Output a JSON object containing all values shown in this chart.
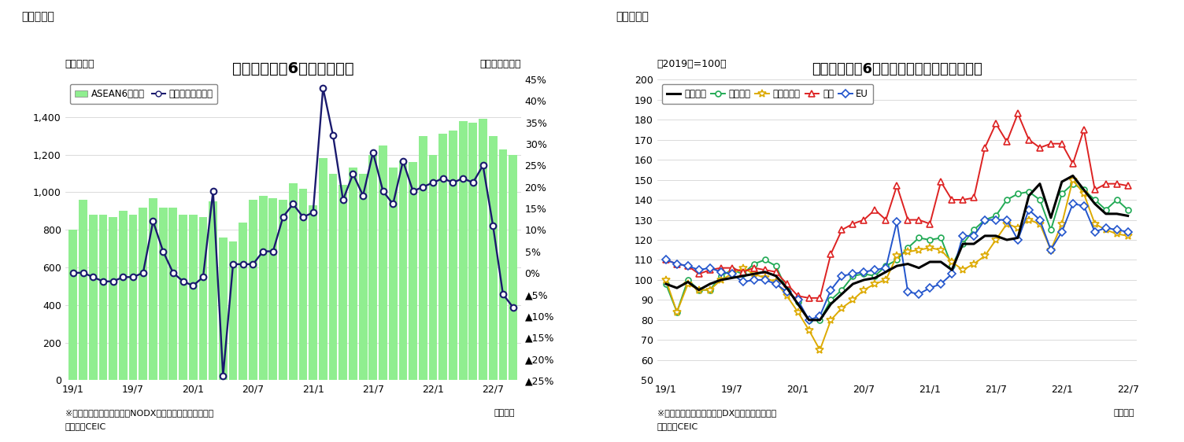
{
  "fig1": {
    "title": "アセアン主要6カ国の輸出額",
    "ylabel_left": "（億ドル）",
    "ylabel_right": "（前年同月比）",
    "xlabel": "（年月）",
    "footnote1": "※シンガポールの輸出額はNODX（石油と再輸出除く）。",
    "footnote2": "（資料）CEIC",
    "header": "（図表１）",
    "legend_bar": "ASEAN6カ国計",
    "legend_line": "増加率（右目盛）",
    "bar_color": "#90EE90",
    "line_color": "#1a1a6e",
    "xtick_labels": [
      "19/1",
      "19/7",
      "20/1",
      "20/7",
      "21/1",
      "21/7",
      "22/1",
      "22/7"
    ],
    "xtick_pos": [
      0,
      6,
      12,
      18,
      24,
      30,
      36,
      42
    ],
    "ylim_left": [
      0,
      1600
    ],
    "ylim_right": [
      -0.25,
      0.45
    ],
    "bar_values": [
      800,
      960,
      880,
      880,
      870,
      900,
      880,
      920,
      970,
      920,
      920,
      880,
      880,
      870,
      950,
      760,
      740,
      840,
      960,
      980,
      970,
      960,
      1050,
      1020,
      930,
      1180,
      1100,
      1040,
      1130,
      1100,
      1200,
      1250,
      1130,
      1170,
      1160,
      1300,
      1200,
      1310,
      1330,
      1380,
      1370,
      1390,
      1300,
      1230,
      1200
    ],
    "line_values": [
      0.0,
      0.0,
      -0.01,
      -0.02,
      -0.02,
      -0.01,
      -0.01,
      0.0,
      0.12,
      0.05,
      0.0,
      -0.02,
      -0.03,
      -0.01,
      0.19,
      -0.24,
      0.02,
      0.02,
      0.02,
      0.05,
      0.05,
      0.13,
      0.16,
      0.13,
      0.14,
      0.43,
      0.32,
      0.17,
      0.23,
      0.18,
      0.28,
      0.19,
      0.16,
      0.26,
      0.19,
      0.2,
      0.21,
      0.22,
      0.21,
      0.22,
      0.21,
      0.25,
      0.11,
      -0.05,
      -0.08
    ],
    "ytick_left_vals": [
      0,
      200,
      400,
      600,
      800,
      1000,
      1200,
      1400
    ],
    "ytick_left_labels": [
      "0",
      "200",
      "400",
      "600",
      "800",
      "1,000",
      "1,200",
      "1,400"
    ],
    "ytick_right_vals": [
      0.45,
      0.4,
      0.35,
      0.3,
      0.25,
      0.2,
      0.15,
      0.1,
      0.05,
      0.0,
      -0.05,
      -0.1,
      -0.15,
      -0.2,
      -0.25
    ],
    "ytick_right_labels": [
      "45%",
      "40%",
      "35%",
      "30%",
      "25%",
      "20%",
      "15%",
      "10%",
      "5%",
      "0%",
      "▲5%",
      "▲10%",
      "▲15%",
      "▲20%",
      "▲25%"
    ]
  },
  "fig2": {
    "title": "アセアン主要6カ国　仕向け地別の輸出動向",
    "ylabel_left": "（2019年=100）",
    "xlabel": "（年月）",
    "footnote1": "※シンガポールの輸出額はDX（再輸出除く）。",
    "footnote2": "（資料）CEIC",
    "header": "（図表２）",
    "legend": [
      "輸出全体",
      "東アジア",
      "東南アジア",
      "北米",
      "EU"
    ],
    "colors": [
      "#000000",
      "#22aa55",
      "#ddaa00",
      "#dd2222",
      "#2255cc"
    ],
    "line_widths": [
      2.2,
      1.4,
      1.4,
      1.4,
      1.4
    ],
    "markers": [
      "none",
      "o",
      "*",
      "^",
      "D"
    ],
    "marker_sizes": [
      0,
      5,
      7,
      6,
      5
    ],
    "xtick_labels": [
      "19/1",
      "19/7",
      "20/1",
      "20/7",
      "21/1",
      "21/7",
      "22/1",
      "22/7"
    ],
    "xtick_pos": [
      0,
      6,
      12,
      18,
      24,
      30,
      36,
      42
    ],
    "ylim": [
      50,
      200
    ],
    "series": {
      "total": [
        98,
        96,
        99,
        95,
        98,
        100,
        101,
        102,
        103,
        104,
        102,
        96,
        88,
        80,
        80,
        88,
        93,
        98,
        100,
        101,
        104,
        107,
        108,
        106,
        109,
        109,
        105,
        118,
        118,
        122,
        122,
        120,
        121,
        142,
        148,
        131,
        149,
        152,
        145,
        138,
        133,
        133,
        132
      ],
      "east_asia": [
        98,
        84,
        100,
        95,
        95,
        102,
        105,
        103,
        108,
        110,
        107,
        95,
        89,
        80,
        80,
        90,
        95,
        102,
        103,
        102,
        107,
        110,
        116,
        121,
        120,
        121,
        107,
        118,
        125,
        130,
        132,
        140,
        143,
        144,
        140,
        125,
        143,
        148,
        145,
        140,
        135,
        140,
        135
      ],
      "southeast_asia": [
        100,
        84,
        98,
        95,
        95,
        100,
        103,
        106,
        103,
        101,
        99,
        92,
        84,
        75,
        65,
        80,
        86,
        90,
        95,
        98,
        100,
        112,
        114,
        115,
        116,
        115,
        109,
        105,
        108,
        112,
        120,
        128,
        126,
        130,
        128,
        115,
        128,
        150,
        143,
        128,
        125,
        123,
        122
      ],
      "north_america": [
        110,
        108,
        107,
        103,
        105,
        106,
        106,
        104,
        106,
        105,
        104,
        98,
        92,
        91,
        91,
        113,
        125,
        128,
        130,
        135,
        130,
        147,
        130,
        130,
        128,
        149,
        140,
        140,
        141,
        166,
        178,
        169,
        183,
        170,
        166,
        168,
        168,
        158,
        175,
        145,
        148,
        148,
        147
      ],
      "eu": [
        110,
        108,
        107,
        105,
        106,
        104,
        103,
        99,
        100,
        100,
        98,
        94,
        90,
        80,
        82,
        95,
        102,
        103,
        104,
        105,
        106,
        129,
        94,
        93,
        96,
        98,
        103,
        122,
        122,
        130,
        130,
        130,
        120,
        135,
        130,
        115,
        124,
        138,
        137,
        124,
        126,
        125,
        124
      ]
    }
  }
}
